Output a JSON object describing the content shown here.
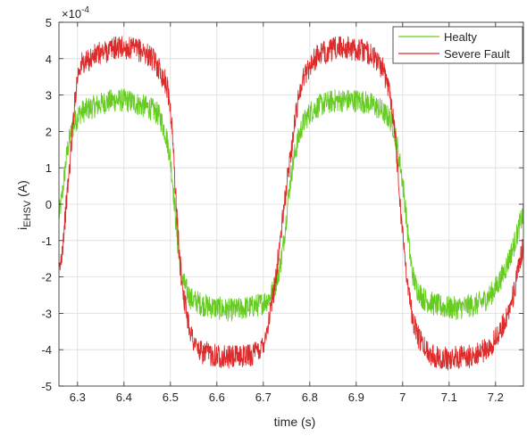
{
  "chart_data": {
    "type": "line",
    "xlabel": "time (s)",
    "ylabel": {
      "prefix": "i",
      "subscript": "EHSV",
      "suffix": " (A)"
    },
    "exponent_label": {
      "base": "×10",
      "power": "-4"
    },
    "xlim": [
      6.26,
      7.26
    ],
    "ylim": [
      -5,
      5
    ],
    "xticks": [
      6.3,
      6.4,
      6.5,
      6.6,
      6.7,
      6.8,
      6.9,
      7,
      7.1,
      7.2
    ],
    "xtick_labels": [
      "6.3",
      "6.4",
      "6.5",
      "6.6",
      "6.7",
      "6.8",
      "6.9",
      "7",
      "7.1",
      "7.2"
    ],
    "yticks": [
      -5,
      -4,
      -3,
      -2,
      -1,
      0,
      1,
      2,
      3,
      4,
      5
    ],
    "ytick_labels": [
      "-5",
      "-4",
      "-3",
      "-2",
      "-1",
      "0",
      "1",
      "2",
      "3",
      "4",
      "5"
    ],
    "grid": true,
    "legend_position": "top-right",
    "x": [
      6.26,
      6.28,
      6.3,
      6.32,
      6.34,
      6.36,
      6.38,
      6.4,
      6.42,
      6.44,
      6.46,
      6.48,
      6.5,
      6.52,
      6.54,
      6.56,
      6.58,
      6.6,
      6.62,
      6.64,
      6.66,
      6.68,
      6.7,
      6.72,
      6.74,
      6.76,
      6.78,
      6.8,
      6.82,
      6.84,
      6.86,
      6.88,
      6.9,
      6.92,
      6.94,
      6.96,
      6.98,
      7.0,
      7.02,
      7.04,
      7.06,
      7.08,
      7.1,
      7.12,
      7.14,
      7.16,
      7.18,
      7.2,
      7.22,
      7.24,
      7.26
    ],
    "series": [
      {
        "name": "Healty",
        "color": "#66cc22",
        "values": [
          -0.3,
          1.6,
          2.4,
          2.6,
          2.7,
          2.8,
          2.85,
          2.85,
          2.8,
          2.7,
          2.6,
          2.3,
          1.2,
          -1.6,
          -2.5,
          -2.7,
          -2.8,
          -2.85,
          -2.9,
          -2.9,
          -2.85,
          -2.8,
          -2.7,
          -2.4,
          -1.4,
          0.8,
          2.0,
          2.5,
          2.7,
          2.8,
          2.85,
          2.85,
          2.85,
          2.8,
          2.7,
          2.5,
          2.1,
          0.6,
          -1.8,
          -2.5,
          -2.7,
          -2.8,
          -2.85,
          -2.85,
          -2.8,
          -2.75,
          -2.6,
          -2.3,
          -1.8,
          -1.1,
          -0.3
        ]
      },
      {
        "name": "Severe Fault",
        "color": "#dd2a2a",
        "values": [
          -1.9,
          0.6,
          3.5,
          3.9,
          4.1,
          4.2,
          4.3,
          4.3,
          4.25,
          4.2,
          4.0,
          3.6,
          2.6,
          -1.5,
          -3.3,
          -4.0,
          -4.1,
          -4.15,
          -4.2,
          -4.2,
          -4.15,
          -4.1,
          -3.8,
          -2.6,
          -0.6,
          1.5,
          3.2,
          3.8,
          4.1,
          4.2,
          4.3,
          4.3,
          4.25,
          4.2,
          4.0,
          3.6,
          2.4,
          -0.8,
          -3.0,
          -3.8,
          -4.1,
          -4.2,
          -4.25,
          -4.2,
          -4.2,
          -4.1,
          -4.0,
          -3.7,
          -3.2,
          -2.4,
          -1.2
        ]
      }
    ]
  }
}
